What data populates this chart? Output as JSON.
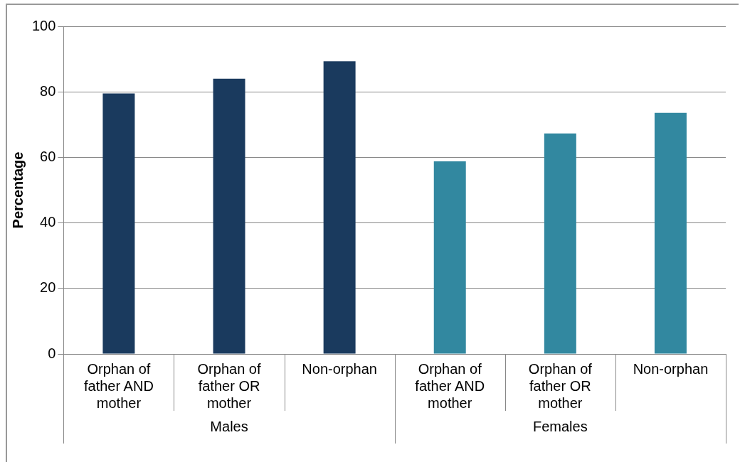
{
  "chart_data": {
    "type": "bar",
    "ylabel": "Percentage",
    "categories": [
      "Orphan of father AND mother",
      "Orphan of father OR mother",
      "Non-orphan",
      "Orphan of father AND mother",
      "Orphan of father OR mother",
      "Non-orphan"
    ],
    "values": [
      79.5,
      84,
      89.3,
      58.8,
      67.3,
      73.6
    ],
    "colors": [
      "#1a3a5e",
      "#1a3a5e",
      "#1a3a5e",
      "#3288a0",
      "#3288a0",
      "#3288a0"
    ],
    "annotations": [
      "Males",
      "Females"
    ],
    "ylim": [
      0,
      100
    ],
    "yticks": [
      0,
      20,
      40,
      60,
      80,
      100
    ],
    "grid": "y",
    "legend": false
  }
}
